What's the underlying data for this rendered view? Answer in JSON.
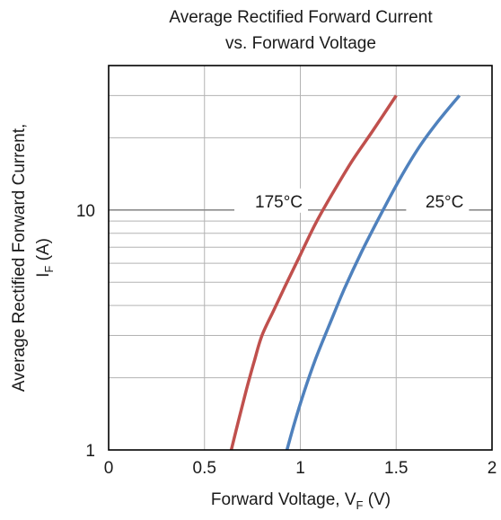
{
  "chart_data": {
    "type": "line",
    "title_lines": [
      "Average Rectified Forward Current",
      "vs. Forward Voltage"
    ],
    "xlabel": {
      "main": "Forward Voltage, V",
      "sub": "F",
      "unit": " (V)"
    },
    "ylabel": {
      "line1": "Average Rectified Forward Current,",
      "main": "I",
      "sub": "F",
      "unit": " (A)"
    },
    "xlim": [
      0,
      2
    ],
    "ylim": [
      1,
      40
    ],
    "yscale": "log",
    "grid": true,
    "x_ticks": [
      {
        "value": 0,
        "label": "0"
      },
      {
        "value": 0.5,
        "label": "0.5"
      },
      {
        "value": 1,
        "label": "1"
      },
      {
        "value": 1.5,
        "label": "1.5"
      },
      {
        "value": 2,
        "label": "2"
      }
    ],
    "y_ticks": [
      {
        "value": 1,
        "label": "1"
      },
      {
        "value": 10,
        "label": "10"
      }
    ],
    "series": [
      {
        "name": "175°C",
        "color": "#c0504d",
        "x": [
          0.64,
          0.68,
          0.72,
          0.76,
          0.8,
          0.86,
          0.92,
          1.0,
          1.08,
          1.17,
          1.27,
          1.38,
          1.5
        ],
        "y": [
          1.0,
          1.35,
          1.8,
          2.35,
          3.0,
          3.8,
          4.8,
          6.5,
          8.8,
          11.8,
          16.0,
          21.5,
          30.0
        ]
      },
      {
        "name": "25°C",
        "color": "#4f81bd",
        "x": [
          0.93,
          0.97,
          1.02,
          1.08,
          1.15,
          1.23,
          1.32,
          1.42,
          1.52,
          1.62,
          1.72,
          1.83
        ],
        "y": [
          1.0,
          1.3,
          1.75,
          2.4,
          3.3,
          4.7,
          6.7,
          9.6,
          13.5,
          18.3,
          23.5,
          30.0
        ]
      }
    ],
    "annotations": [
      {
        "text": "175°C",
        "series": "175°C"
      },
      {
        "text": "25°C",
        "series": "25°C"
      }
    ]
  }
}
